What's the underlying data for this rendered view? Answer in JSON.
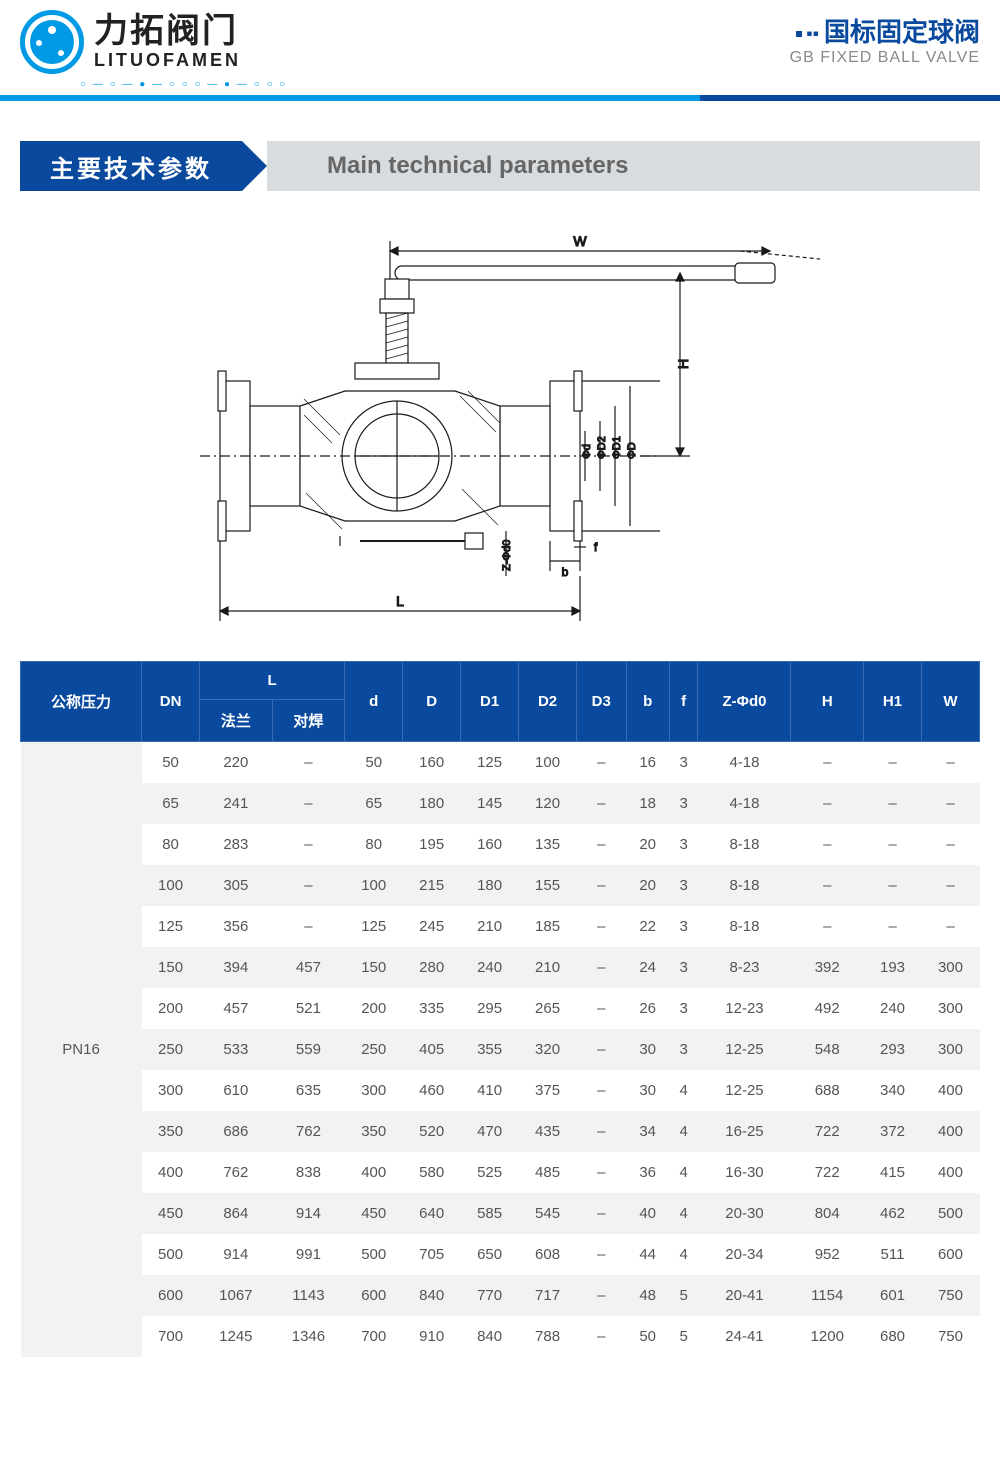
{
  "header": {
    "logo_cn": "力拓阀门",
    "logo_en": "LITUOFAMEN",
    "right_cn": "国标固定球阀",
    "right_en": "GB FIXED BALL VALVE",
    "dots": "○ — ○ — ● — ○ ○ ○ — ● — ○ ○ ○"
  },
  "section": {
    "title_cn": "主要技术参数",
    "title_en": "Main technical parameters"
  },
  "diagram": {
    "labels": {
      "W": "W",
      "H": "H",
      "L": "L",
      "b": "b",
      "f": "f",
      "phi_d": "Φd",
      "phi_D2": "ΦD2",
      "phi_D1": "ΦD1",
      "phi_D": "ΦD",
      "Z_phi_d0": "Z-Φd0"
    },
    "stroke": "#1a1a1a",
    "fill_body": "#ffffff"
  },
  "table": {
    "header": {
      "pressure": "公称压力",
      "DN": "DN",
      "L": "L",
      "L_flange": "法兰",
      "L_weld": "对焊",
      "d": "d",
      "D": "D",
      "D1": "D1",
      "D2": "D2",
      "D3": "D3",
      "b": "b",
      "f": "f",
      "Zd0": "Z-Φd0",
      "H": "H",
      "H1": "H1",
      "W": "W"
    },
    "pressure_label": "PN16",
    "rows": [
      [
        "50",
        "220",
        "–",
        "50",
        "160",
        "125",
        "100",
        "–",
        "16",
        "3",
        "4-18",
        "–",
        "–",
        "–"
      ],
      [
        "65",
        "241",
        "–",
        "65",
        "180",
        "145",
        "120",
        "–",
        "18",
        "3",
        "4-18",
        "–",
        "–",
        "–"
      ],
      [
        "80",
        "283",
        "–",
        "80",
        "195",
        "160",
        "135",
        "–",
        "20",
        "3",
        "8-18",
        "–",
        "–",
        "–"
      ],
      [
        "100",
        "305",
        "–",
        "100",
        "215",
        "180",
        "155",
        "–",
        "20",
        "3",
        "8-18",
        "–",
        "–",
        "–"
      ],
      [
        "125",
        "356",
        "–",
        "125",
        "245",
        "210",
        "185",
        "–",
        "22",
        "3",
        "8-18",
        "–",
        "–",
        "–"
      ],
      [
        "150",
        "394",
        "457",
        "150",
        "280",
        "240",
        "210",
        "–",
        "24",
        "3",
        "8-23",
        "392",
        "193",
        "300"
      ],
      [
        "200",
        "457",
        "521",
        "200",
        "335",
        "295",
        "265",
        "–",
        "26",
        "3",
        "12-23",
        "492",
        "240",
        "300"
      ],
      [
        "250",
        "533",
        "559",
        "250",
        "405",
        "355",
        "320",
        "–",
        "30",
        "3",
        "12-25",
        "548",
        "293",
        "300"
      ],
      [
        "300",
        "610",
        "635",
        "300",
        "460",
        "410",
        "375",
        "–",
        "30",
        "4",
        "12-25",
        "688",
        "340",
        "400"
      ],
      [
        "350",
        "686",
        "762",
        "350",
        "520",
        "470",
        "435",
        "–",
        "34",
        "4",
        "16-25",
        "722",
        "372",
        "400"
      ],
      [
        "400",
        "762",
        "838",
        "400",
        "580",
        "525",
        "485",
        "–",
        "36",
        "4",
        "16-30",
        "722",
        "415",
        "400"
      ],
      [
        "450",
        "864",
        "914",
        "450",
        "640",
        "585",
        "545",
        "–",
        "40",
        "4",
        "20-30",
        "804",
        "462",
        "500"
      ],
      [
        "500",
        "914",
        "991",
        "500",
        "705",
        "650",
        "608",
        "–",
        "44",
        "4",
        "20-34",
        "952",
        "511",
        "600"
      ],
      [
        "600",
        "1067",
        "1143",
        "600",
        "840",
        "770",
        "717",
        "–",
        "48",
        "5",
        "20-41",
        "1154",
        "601",
        "750"
      ],
      [
        "700",
        "1245",
        "1346",
        "700",
        "910",
        "840",
        "788",
        "–",
        "50",
        "5",
        "24-41",
        "1200",
        "680",
        "750"
      ]
    ]
  },
  "colors": {
    "brand_blue": "#0a4a9e",
    "accent_blue": "#0099e5",
    "header_grey": "#d8dcdf",
    "row_alt": "#f0f2f4",
    "text": "#555555"
  }
}
